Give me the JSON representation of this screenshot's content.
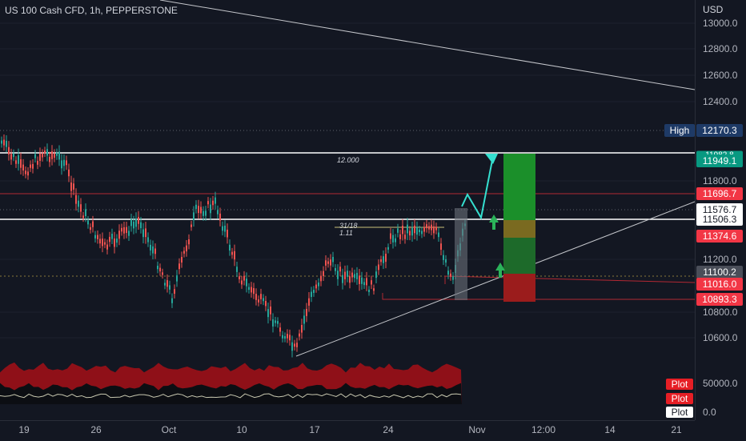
{
  "header": {
    "title": "US 100 Cash CFD, 1h, PEPPERSTONE",
    "currency": "USD"
  },
  "price_axis": {
    "ticks": [
      "13000.0",
      "12800.0",
      "12600.0",
      "12400.0",
      "11800.0",
      "11200.0",
      "10800.0",
      "10600.0"
    ],
    "volume_ticks": [
      "50000.0",
      "0.0"
    ]
  },
  "tags": {
    "high_label": "High",
    "high_value": "12170.3",
    "target": "11949.1",
    "resistance": "11696.7",
    "current": "11576.7",
    "level": "11506.3",
    "entry": "11374.6",
    "dotted": "11100.2",
    "support": "11016.0",
    "stop": "10893.3",
    "hidden_target": "11982.8"
  },
  "annotations": {
    "level_label": "12.000",
    "ratio_top": "31/18",
    "ratio_bottom": "1.11"
  },
  "volume": {
    "plot_labels": [
      "Plot",
      "Plot",
      "Plot"
    ]
  },
  "time_axis": {
    "labels": [
      "19",
      "26",
      "Oct",
      "10",
      "17",
      "24",
      "Nov",
      "12:00",
      "14",
      "21"
    ]
  },
  "colors": {
    "bull": "#26a69a",
    "bear": "#ef5350",
    "target_zone": "#1b8f2a",
    "stop_zone": "#9b1c1c",
    "tag_red": "#f23645",
    "tag_green": "#089981"
  }
}
